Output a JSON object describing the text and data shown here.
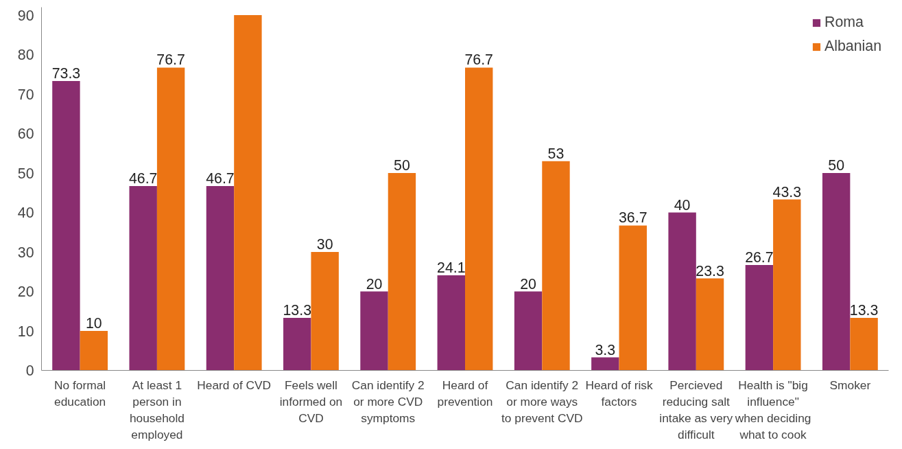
{
  "chart_data": {
    "type": "bar",
    "categories": [
      "No formal education",
      "At least 1 person in household employed",
      "Heard of CVD",
      "Feels well informed on CVD",
      "Can identify 2 or more CVD symptoms",
      "Heard of prevention",
      "Can identify 2 or more ways to prevent CVD",
      "Heard of risk factors",
      "Percieved reducing salt intake as very difficult",
      "Health is \"big influence\" when deciding what to cook",
      "Smoker"
    ],
    "series": [
      {
        "name": "Roma",
        "color": "#8a2d6f",
        "values": [
          73.3,
          46.7,
          46.7,
          13.3,
          20,
          24.1,
          20,
          3.3,
          40,
          26.7,
          50
        ],
        "value_labels": [
          "73.3",
          "46.7",
          "46.7",
          "13.3",
          "20",
          "24.1",
          "20",
          "3.3",
          "40",
          "26.7",
          "50"
        ]
      },
      {
        "name": "Albanian",
        "color": "#ec7414",
        "values": [
          10,
          76.7,
          90,
          30,
          50,
          76.7,
          53,
          36.7,
          23.3,
          43.3,
          13.3
        ],
        "value_labels": [
          "10",
          "76.7",
          null,
          "30",
          "50",
          "76.7",
          "53",
          "36.7",
          "23.3",
          "43.3",
          "13.3"
        ]
      }
    ],
    "ylim": [
      0,
      92
    ],
    "yticks": [
      0,
      10,
      20,
      30,
      40,
      50,
      60,
      70,
      80,
      90
    ],
    "grid": false,
    "legend": "top right"
  }
}
